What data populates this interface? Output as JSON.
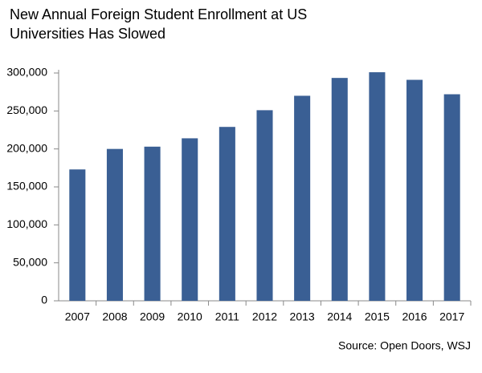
{
  "chart_data": {
    "type": "bar",
    "title": "New Annual Foreign Student Enrollment at US Universities Has Slowed",
    "source": "Source: Open Doors, WSJ",
    "categories": [
      "2007",
      "2008",
      "2009",
      "2010",
      "2011",
      "2012",
      "2013",
      "2014",
      "2015",
      "2016",
      "2017"
    ],
    "values": [
      173000,
      200000,
      203000,
      214000,
      229000,
      251000,
      270000,
      293500,
      301000,
      291000,
      272000
    ],
    "color": "#3a5f94",
    "ylim": [
      0,
      300000
    ],
    "yticks": [
      0,
      {
        "value": 50000,
        "label": "50,000"
      },
      {
        "value": 100000,
        "label": "100,000"
      },
      {
        "value": 150000,
        "label": "150,000"
      },
      {
        "value": 200000,
        "label": "200,000"
      },
      {
        "value": 250000,
        "label": "250,000"
      },
      {
        "value": 300000,
        "label": "300,000"
      }
    ],
    "grid": false
  }
}
